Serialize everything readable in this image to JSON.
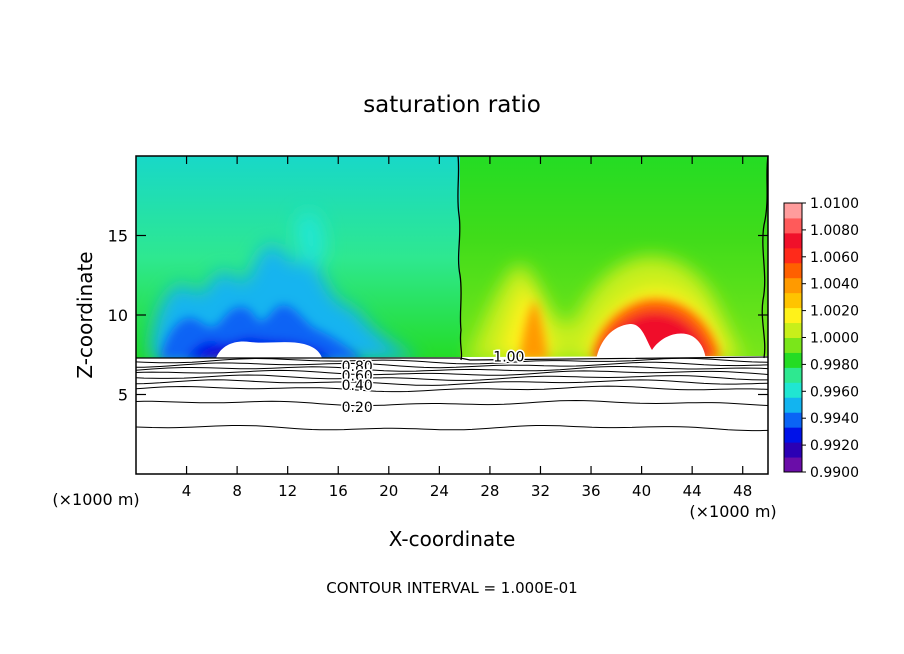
{
  "chart_data": {
    "type": "heatmap",
    "title": "saturation ratio",
    "xlabel": "X-coordinate",
    "ylabel": "Z-coordinate",
    "x_unit_left": "(×1000 m)",
    "x_unit_right": "(×1000 m)",
    "xlim": [
      0,
      50
    ],
    "ylim": [
      0,
      20
    ],
    "x_ticks": [
      4,
      8,
      12,
      16,
      20,
      24,
      28,
      32,
      36,
      40,
      44,
      48
    ],
    "x_tick_labels": [
      "4",
      "8",
      "12",
      "16",
      "20",
      "24",
      "28",
      "32",
      "36",
      "40",
      "44",
      "48"
    ],
    "y_ticks": [
      5,
      10,
      15
    ],
    "y_tick_labels": [
      "5",
      "10",
      "15"
    ],
    "footer": "CONTOUR INTERVAL = 1.000E-01",
    "colorbar": {
      "min": 0.99,
      "max": 1.01,
      "labels": [
        "1.0100",
        "1.0080",
        "1.0060",
        "1.0040",
        "1.0020",
        "1.0000",
        "0.9980",
        "0.9960",
        "0.9940",
        "0.9920",
        "0.9900"
      ],
      "colors": [
        "#6a0da8",
        "#2b00b4",
        "#0012e8",
        "#0a64f5",
        "#12b4f0",
        "#20e6d2",
        "#2ee890",
        "#24dc24",
        "#7ae61a",
        "#c8ef1a",
        "#fff21a",
        "#ffc400",
        "#ff9a00",
        "#ff6000",
        "#ff2a1a",
        "#f0102a",
        "#ff5a5a",
        "#ff9c9c"
      ]
    },
    "contour_labels": [
      {
        "label": "1.00",
        "x": 29.5,
        "z": 7.4
      },
      {
        "label": "0.80",
        "x": 17.5,
        "z": 6.8
      },
      {
        "label": "0.60",
        "x": 17.5,
        "z": 6.2
      },
      {
        "label": "0.40",
        "x": 17.5,
        "z": 5.6
      },
      {
        "label": "0.20",
        "x": 17.5,
        "z": 4.2
      }
    ],
    "subsaturated_contours_z": [
      7.1,
      6.85,
      6.6,
      6.35,
      6.05,
      5.75,
      5.35,
      4.45,
      2.9
    ]
  }
}
